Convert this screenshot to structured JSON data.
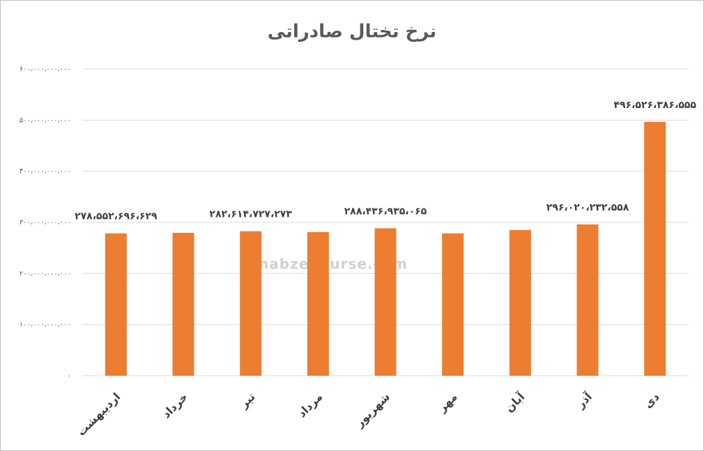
{
  "chart_data": {
    "type": "bar",
    "title": "نرخ تختال صادراتی",
    "categories": [
      "اردیبهشت",
      "خرداد",
      "تیر",
      "مرداد",
      "شهریور",
      "مهر",
      "آبان",
      "آذر",
      "دی"
    ],
    "values": [
      278552696629,
      279500000000,
      282614727273,
      281000000000,
      288436935065,
      278500000000,
      285000000000,
      296020232558,
      496526386555
    ],
    "value_labels": [
      "۲۷۸،۵۵۲،۶۹۶،۶۲۹",
      null,
      "۲۸۲،۶۱۴،۷۲۷،۲۷۳",
      null,
      "۲۸۸،۴۳۶،۹۳۵،۰۶۵",
      null,
      null,
      "۲۹۶،۰۲۰،۲۳۲،۵۵۸",
      "۴۹۶،۵۲۶،۳۸۶،۵۵۵"
    ],
    "color": "#ed7d31",
    "ylim": [
      0,
      600000000000
    ],
    "yticks": [
      {
        "value": 0,
        "label": "۰"
      },
      {
        "value": 100000000000,
        "label": "۱۰۰،۰۰۰،۰۰۰،۰۰۰"
      },
      {
        "value": 200000000000,
        "label": "۲۰۰،۰۰۰،۰۰۰،۰۰۰"
      },
      {
        "value": 300000000000,
        "label": "۳۰۰،۰۰۰،۰۰۰،۰۰۰"
      },
      {
        "value": 400000000000,
        "label": "۴۰۰،۰۰۰،۰۰۰،۰۰۰"
      },
      {
        "value": 500000000000,
        "label": "۵۰۰،۰۰۰،۰۰۰،۰۰۰"
      },
      {
        "value": 600000000000,
        "label": "۶۰۰،۰۰۰،۰۰۰،۰۰۰"
      }
    ],
    "grid": true,
    "watermark": "nabzebourse.com"
  }
}
